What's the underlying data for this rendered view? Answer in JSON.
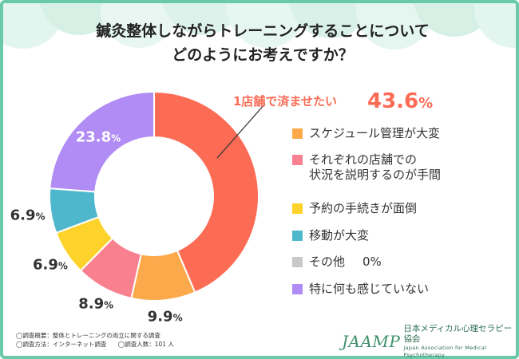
{
  "title": {
    "line1": "鍼灸整体しながらトレーニングすることについて",
    "line2": "どのようにお考えですか？"
  },
  "chart_data": {
    "type": "pie",
    "categories": [
      "1店舗で済ませたい",
      "スケジュール管理が大変",
      "それぞれの店舗での状況を説明するのが手間",
      "予約の手続きが面倒",
      "移動が大変",
      "その他",
      "特に何も感じていない"
    ],
    "values": [
      43.6,
      9.9,
      8.9,
      6.9,
      6.9,
      0,
      23.8
    ],
    "colors": [
      "#fc6c55",
      "#fca94b",
      "#f9808f",
      "#fdd22b",
      "#4eb7cc",
      "#c8c8c8",
      "#b08cf4"
    ],
    "labels": [
      "43.6%",
      "9.9%",
      "8.9%",
      "6.9%",
      "6.9%",
      "0%",
      "23.8%"
    ],
    "callout": {
      "label": "1店舗で済ませたい",
      "value": "43.6%"
    }
  },
  "legend": [
    {
      "lines": [
        "スケジュール管理が大変"
      ],
      "color": "#fca94b"
    },
    {
      "lines": [
        "それぞれの店舗での",
        "状況を説明するのが手間"
      ],
      "color": "#f9808f"
    },
    {
      "lines": [
        "予約の手続きが面倒"
      ],
      "color": "#fdd22b"
    },
    {
      "lines": [
        "移動が大変"
      ],
      "color": "#4eb7cc"
    },
    {
      "lines": [
        "その他"
      ],
      "color": "#c8c8c8",
      "value": "0%"
    },
    {
      "lines": [
        "特に何も感じていない"
      ],
      "color": "#b08cf4"
    }
  ],
  "footer": {
    "line1": "◯調査概要：整体とトレーニングの両立に関する調査",
    "line2a": "◯調査方法：インターネット調査",
    "line2b": "◯調査人数：101 人"
  },
  "logo": {
    "mark": "JAAMP",
    "jp": "日本メディカル心理セラピー協会",
    "en": "Japan Association for Medical Psychotherapy"
  }
}
